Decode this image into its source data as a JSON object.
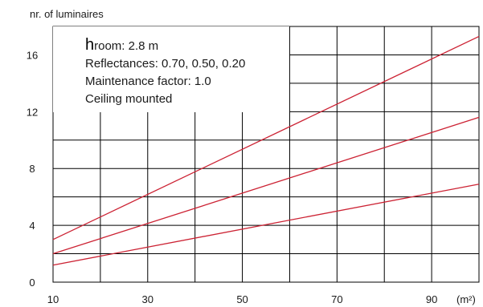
{
  "chart_data": {
    "type": "line",
    "title": "",
    "ylabel": "nr. of luminaires",
    "xlabel": "(m²)",
    "xlim": [
      10,
      100
    ],
    "ylim": [
      0,
      18
    ],
    "x_ticks": [
      "10",
      "30",
      "50",
      "70",
      "90"
    ],
    "y_ticks": [
      "0",
      "4",
      "8",
      "12",
      "16"
    ],
    "grid": true,
    "annotation": {
      "h_letter": "h",
      "h_rest": "room: 2.8 m",
      "reflectances": "Reflectances: 0.70, 0.50, 0.20",
      "maintenance": "Maintenance factor: 1.0",
      "mounting": "Ceiling mounted"
    },
    "series": [
      {
        "x": [
          10,
          100
        ],
        "y": [
          3.0,
          17.3
        ]
      },
      {
        "x": [
          10,
          100
        ],
        "y": [
          2.0,
          11.6
        ]
      },
      {
        "x": [
          10,
          100
        ],
        "y": [
          1.2,
          6.9
        ]
      }
    ],
    "colors": {
      "series": "#cc2233",
      "grid": "#000000"
    }
  }
}
